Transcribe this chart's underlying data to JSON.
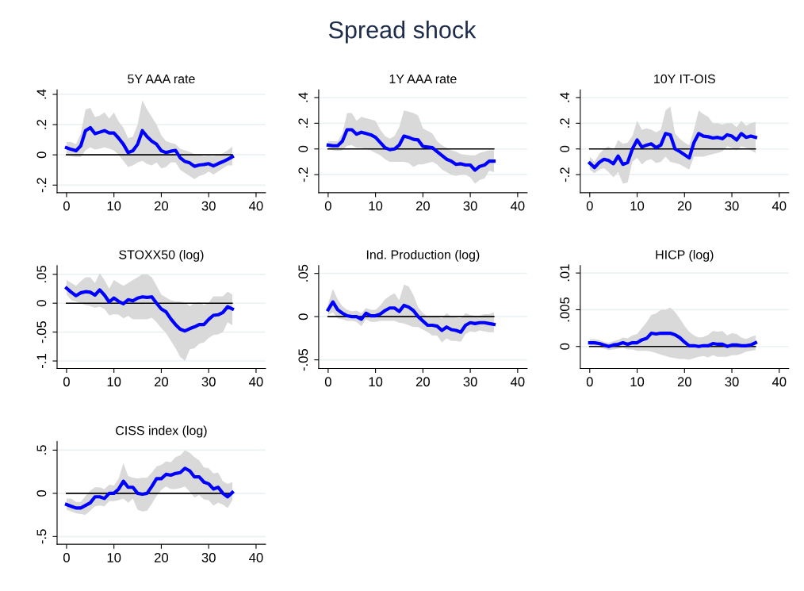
{
  "chart_data": [
    {
      "type": "line",
      "title": "5Y AAA rate",
      "annotations": [
        "Spread shock"
      ],
      "grid": "y",
      "xlim": [
        -2,
        42
      ],
      "xticks": [
        0,
        10,
        20,
        30,
        40
      ],
      "ylim": [
        -0.25,
        0.43
      ],
      "yticks": [
        {
          "value": -0.2,
          "label": "-.2"
        },
        0,
        {
          "value": 0.2,
          "label": ".2"
        },
        {
          "value": 0.4,
          "label": ".4"
        }
      ],
      "ref_lines": [
        {
          "axis": "y",
          "value": 0,
          "color": "#000000"
        }
      ],
      "x": [
        0,
        1,
        2,
        3,
        4,
        5,
        6,
        7,
        8,
        9,
        10,
        11,
        12,
        13,
        14,
        15,
        16,
        17,
        18,
        19,
        20,
        21,
        22,
        23,
        24,
        25,
        26,
        27,
        28,
        29,
        30,
        31,
        32,
        33,
        34,
        35
      ],
      "series": [
        {
          "color": "#0000ff",
          "values": [
            0.047,
            0.036,
            0.027,
            0.06,
            0.16,
            0.18,
            0.14,
            0.15,
            0.16,
            0.145,
            0.145,
            0.11,
            0.07,
            0.015,
            0.027,
            0.07,
            0.16,
            0.12,
            0.09,
            0.07,
            0.027,
            0.015,
            0.024,
            0.03,
            -0.02,
            -0.044,
            -0.053,
            -0.076,
            -0.067,
            -0.064,
            -0.058,
            -0.073,
            -0.058,
            -0.045,
            -0.03,
            -0.013
          ],
          "upper": [
            0.085,
            0.085,
            0.07,
            0.14,
            0.3,
            0.31,
            0.25,
            0.26,
            0.28,
            0.24,
            0.28,
            0.22,
            0.18,
            0.11,
            0.12,
            0.2,
            0.36,
            0.3,
            0.25,
            0.2,
            0.13,
            0.09,
            0.08,
            0.07,
            0.04,
            0.03,
            0.02,
            0.005,
            0.0,
            -0.01,
            -0.005,
            -0.01,
            0.0,
            0.01,
            0.03,
            0.055
          ],
          "lower": [
            0.0,
            -0.01,
            -0.015,
            -0.015,
            0.03,
            0.05,
            0.035,
            0.04,
            0.05,
            0.04,
            0.03,
            0.0,
            -0.04,
            -0.08,
            -0.07,
            -0.05,
            -0.04,
            -0.06,
            -0.07,
            -0.05,
            -0.09,
            -0.08,
            -0.05,
            -0.05,
            -0.1,
            -0.12,
            -0.14,
            -0.16,
            -0.14,
            -0.13,
            -0.11,
            -0.13,
            -0.11,
            -0.09,
            -0.07,
            -0.07
          ]
        }
      ]
    },
    {
      "type": "line",
      "title": "1Y AAA rate",
      "grid": "y",
      "xlim": [
        -2,
        42
      ],
      "xticks": [
        0,
        10,
        20,
        30,
        40
      ],
      "ylim": [
        -0.34,
        0.46
      ],
      "yticks": [
        {
          "value": -0.2,
          "label": "-.2"
        },
        0,
        {
          "value": 0.2,
          "label": ".2"
        },
        {
          "value": 0.4,
          "label": ".4"
        }
      ],
      "ref_lines": [
        {
          "axis": "y",
          "value": 0,
          "color": "#000000"
        }
      ],
      "x": [
        0,
        1,
        2,
        3,
        4,
        5,
        6,
        7,
        8,
        9,
        10,
        11,
        12,
        13,
        14,
        15,
        16,
        17,
        18,
        19,
        20,
        21,
        22,
        23,
        24,
        25,
        26,
        27,
        28,
        29,
        30,
        31,
        32,
        33,
        34,
        35
      ],
      "series": [
        {
          "color": "#0000ff",
          "values": [
            0.03,
            0.025,
            0.025,
            0.06,
            0.15,
            0.15,
            0.115,
            0.13,
            0.12,
            0.11,
            0.09,
            0.05,
            0.01,
            -0.005,
            0,
            0.03,
            0.1,
            0.09,
            0.075,
            0.07,
            0.02,
            0.015,
            0.01,
            -0.02,
            -0.05,
            -0.08,
            -0.095,
            -0.12,
            -0.115,
            -0.125,
            -0.125,
            -0.165,
            -0.135,
            -0.125,
            -0.095,
            -0.095
          ],
          "upper": [
            0.06,
            0.06,
            0.06,
            0.12,
            0.28,
            0.28,
            0.22,
            0.25,
            0.24,
            0.23,
            0.22,
            0.15,
            0.1,
            0.08,
            0.1,
            0.17,
            0.3,
            0.29,
            0.28,
            0.26,
            0.16,
            0.14,
            0.12,
            0.06,
            0.03,
            0.01,
            -0.01,
            -0.02,
            -0.04,
            -0.045,
            -0.05,
            -0.05,
            -0.03,
            -0.02,
            -0.01,
            -0.01
          ],
          "lower": [
            0.0,
            -0.01,
            -0.015,
            -0.01,
            0.025,
            0.03,
            0.01,
            0.01,
            0.0,
            -0.01,
            -0.03,
            -0.05,
            -0.08,
            -0.1,
            -0.1,
            -0.1,
            -0.1,
            -0.11,
            -0.14,
            -0.12,
            -0.12,
            -0.11,
            -0.1,
            -0.12,
            -0.16,
            -0.18,
            -0.2,
            -0.21,
            -0.2,
            -0.2,
            -0.22,
            -0.27,
            -0.24,
            -0.23,
            -0.17,
            -0.18
          ]
        }
      ]
    },
    {
      "type": "line",
      "title": "10Y IT-OIS",
      "grid": "y",
      "xlim": [
        -2,
        42
      ],
      "xticks": [
        0,
        10,
        20,
        30,
        40
      ],
      "ylim": [
        -0.34,
        0.46
      ],
      "yticks": [
        {
          "value": -0.2,
          "label": "-.2"
        },
        0,
        {
          "value": 0.2,
          "label": ".2"
        },
        {
          "value": 0.4,
          "label": ".4"
        }
      ],
      "ref_lines": [
        {
          "axis": "y",
          "value": 0,
          "color": "#000000"
        }
      ],
      "x": [
        0,
        1,
        2,
        3,
        4,
        5,
        6,
        7,
        8,
        9,
        10,
        11,
        12,
        13,
        14,
        15,
        16,
        17,
        18,
        19,
        20,
        21,
        22,
        23,
        24,
        25,
        26,
        27,
        28,
        29,
        30,
        31,
        32,
        33,
        34,
        35
      ],
      "series": [
        {
          "color": "#0000ff",
          "values": [
            -0.11,
            -0.145,
            -0.105,
            -0.08,
            -0.09,
            -0.115,
            -0.055,
            -0.12,
            -0.105,
            0.0,
            0.07,
            0.015,
            0.03,
            0.04,
            0.01,
            0.03,
            0.12,
            0.11,
            0.0,
            -0.02,
            -0.045,
            -0.07,
            0.05,
            0.12,
            0.1,
            0.095,
            0.085,
            0.09,
            0.08,
            0.11,
            0.1,
            0.07,
            0.12,
            0.09,
            0.1,
            0.09
          ],
          "upper": [
            -0.06,
            -0.1,
            -0.04,
            0,
            0.02,
            -0.01,
            0.07,
            0.04,
            0.05,
            0.1,
            0.22,
            0.15,
            0.16,
            0.15,
            0.13,
            0.15,
            0.3,
            0.33,
            0.12,
            0.08,
            0.05,
            0.03,
            0.15,
            0.3,
            0.27,
            0.25,
            0.2,
            0.2,
            0.19,
            0.2,
            0.2,
            0.17,
            0.22,
            0.18,
            0.2,
            0.21
          ],
          "lower": [
            -0.16,
            -0.19,
            -0.16,
            -0.15,
            -0.18,
            -0.22,
            -0.18,
            -0.27,
            -0.26,
            -0.1,
            -0.07,
            -0.12,
            -0.09,
            -0.08,
            -0.11,
            -0.1,
            -0.06,
            -0.1,
            -0.11,
            -0.12,
            -0.14,
            -0.16,
            -0.06,
            -0.06,
            -0.06,
            -0.05,
            -0.04,
            -0.03,
            -0.02,
            0.02,
            0.01,
            -0.01,
            0.02,
            0.01,
            -0.01,
            -0.03
          ]
        }
      ]
    },
    {
      "type": "line",
      "title": "STOXX50 (log)",
      "grid": "y",
      "xlim": [
        -2,
        42
      ],
      "xticks": [
        0,
        10,
        20,
        30,
        40
      ],
      "ylim": [
        -0.113,
        0.065
      ],
      "yticks": [
        {
          "value": -0.1,
          "label": "-.1"
        },
        {
          "value": -0.05,
          "label": "-.05"
        },
        0,
        {
          "value": 0.05,
          "label": ".05"
        }
      ],
      "ref_lines": [
        {
          "axis": "y",
          "value": 0,
          "color": "#000000"
        }
      ],
      "x": [
        0,
        1,
        2,
        3,
        4,
        5,
        6,
        7,
        8,
        9,
        10,
        11,
        12,
        13,
        14,
        15,
        16,
        17,
        18,
        19,
        20,
        21,
        22,
        23,
        24,
        25,
        26,
        27,
        28,
        29,
        30,
        31,
        32,
        33,
        34,
        35
      ],
      "series": [
        {
          "color": "#0000ff",
          "values": [
            0.026,
            0.019,
            0.013,
            0.018,
            0.02,
            0.019,
            0.014,
            0.023,
            0.014,
            0.002,
            0.009,
            0.003,
            -0.001,
            0.006,
            0.004,
            0.009,
            0.011,
            0.01,
            0.011,
            0.0,
            -0.01,
            -0.015,
            -0.027,
            -0.037,
            -0.045,
            -0.048,
            -0.044,
            -0.041,
            -0.037,
            -0.037,
            -0.028,
            -0.021,
            -0.02,
            -0.016,
            -0.006,
            -0.01
          ],
          "upper": [
            0.04,
            0.035,
            0.03,
            0.038,
            0.045,
            0.045,
            0.035,
            0.052,
            0.04,
            0.025,
            0.04,
            0.035,
            0.03,
            0.035,
            0.04,
            0.045,
            0.05,
            0.05,
            0.045,
            0.03,
            0.015,
            0.01,
            0.005,
            0.003,
            0.003,
            0.001,
            -0.005,
            0.0,
            0.002,
            -0.003,
            0.001,
            0.012,
            0.012,
            0.012,
            0.02,
            0.015
          ],
          "lower": [
            0.015,
            0.005,
            0.003,
            0.0,
            -0.003,
            -0.005,
            -0.008,
            -0.006,
            -0.01,
            -0.021,
            -0.019,
            -0.02,
            -0.026,
            -0.022,
            -0.028,
            -0.028,
            -0.028,
            -0.028,
            -0.025,
            -0.033,
            -0.043,
            -0.052,
            -0.065,
            -0.078,
            -0.093,
            -0.1,
            -0.08,
            -0.078,
            -0.07,
            -0.068,
            -0.06,
            -0.055,
            -0.054,
            -0.05,
            -0.033,
            -0.038
          ]
        }
      ]
    },
    {
      "type": "line",
      "title": "Ind. Production (log)",
      "grid": "y",
      "xlim": [
        -2,
        42
      ],
      "xticks": [
        0,
        10,
        20,
        30,
        40
      ],
      "ylim": [
        -0.06,
        0.059
      ],
      "yticks": [
        {
          "value": -0.05,
          "label": "-.05"
        },
        0,
        {
          "value": 0.05,
          "label": ".05"
        }
      ],
      "ref_lines": [
        {
          "axis": "y",
          "value": 0,
          "color": "#000000"
        }
      ],
      "x": [
        0,
        1,
        2,
        3,
        4,
        5,
        6,
        7,
        8,
        9,
        10,
        11,
        12,
        13,
        14,
        15,
        16,
        17,
        18,
        19,
        20,
        21,
        22,
        23,
        24,
        25,
        26,
        27,
        28,
        29,
        30,
        31,
        32,
        33,
        34,
        35
      ],
      "series": [
        {
          "color": "#0000ff",
          "values": [
            0.008,
            0.017,
            0.008,
            0.004,
            0.001,
            0.0,
            0.0,
            -0.003,
            0.004,
            0.001,
            0.001,
            0.003,
            0.007,
            0.01,
            0.01,
            0.006,
            0.013,
            0.011,
            0.007,
            0.0,
            -0.005,
            -0.01,
            -0.01,
            -0.011,
            -0.016,
            -0.012,
            -0.015,
            -0.016,
            -0.018,
            -0.01,
            -0.007,
            -0.008,
            -0.007,
            -0.007,
            -0.008,
            -0.009
          ],
          "upper": [
            0.015,
            0.032,
            0.02,
            0.012,
            0.008,
            0.006,
            0.007,
            0.004,
            0.01,
            0.008,
            0.008,
            0.013,
            0.02,
            0.024,
            0.027,
            0.019,
            0.037,
            0.035,
            0.025,
            0.011,
            0.004,
            0.0,
            0.0,
            0.0,
            -0.002,
            0.004,
            0.0,
            -0.001,
            -0.002,
            0.004,
            0.002,
            0.001,
            0.001,
            0.003,
            0.003,
            0.005
          ],
          "lower": [
            0.002,
            0.005,
            -0.002,
            -0.003,
            -0.005,
            -0.005,
            -0.006,
            -0.011,
            -0.003,
            -0.006,
            -0.006,
            -0.005,
            -0.005,
            -0.005,
            -0.005,
            -0.007,
            -0.008,
            -0.01,
            -0.012,
            -0.012,
            -0.015,
            -0.018,
            -0.022,
            -0.022,
            -0.03,
            -0.025,
            -0.028,
            -0.028,
            -0.029,
            -0.02,
            -0.017,
            -0.018,
            -0.016,
            -0.017,
            -0.018,
            -0.018
          ]
        }
      ]
    },
    {
      "type": "line",
      "title": "HICP (log)",
      "grid": "y",
      "xlim": [
        -2,
        42
      ],
      "xticks": [
        0,
        10,
        20,
        30,
        40
      ],
      "ylim": [
        -0.003,
        0.011
      ],
      "yticks": [
        0,
        {
          "value": 0.005,
          "label": ".005"
        },
        {
          "value": 0.01,
          "label": ".01"
        }
      ],
      "ref_lines": [
        {
          "axis": "y",
          "value": 0,
          "color": "#000000"
        }
      ],
      "x": [
        0,
        1,
        2,
        3,
        4,
        5,
        6,
        7,
        8,
        9,
        10,
        11,
        12,
        13,
        14,
        15,
        16,
        17,
        18,
        19,
        20,
        21,
        22,
        23,
        24,
        25,
        26,
        27,
        28,
        29,
        30,
        31,
        32,
        33,
        34,
        35
      ],
      "series": [
        {
          "color": "#0000ff",
          "values": [
            0.0005,
            0.0005,
            0.0004,
            0.0002,
            0.0,
            0.0002,
            0.0003,
            0.0005,
            0.0003,
            0.0005,
            0.0005,
            0.0009,
            0.0011,
            0.0018,
            0.0017,
            0.0018,
            0.0018,
            0.0018,
            0.0016,
            0.0012,
            0.0006,
            0.0001,
            0.0001,
            0.0,
            0.0001,
            0.0001,
            0.0004,
            0.0003,
            0.0003,
            0.0,
            0.0002,
            0.0002,
            0.0001,
            0.0001,
            0.0002,
            0.0005
          ],
          "upper": [
            0.001,
            0.001,
            0.0009,
            0.0006,
            0.0005,
            0.0007,
            0.0009,
            0.0012,
            0.0011,
            0.0015,
            0.0017,
            0.0025,
            0.0033,
            0.0043,
            0.0045,
            0.005,
            0.005,
            0.0053,
            0.0047,
            0.0038,
            0.0028,
            0.002,
            0.0015,
            0.0012,
            0.0013,
            0.0016,
            0.0021,
            0.002,
            0.0021,
            0.0015,
            0.0018,
            0.0017,
            0.0012,
            0.001,
            0.0013,
            0.0015
          ],
          "lower": [
            0.0001,
            0.0001,
            -0.0001,
            -0.0003,
            -0.0005,
            -0.0004,
            -0.0003,
            -0.0002,
            -0.0004,
            -0.0004,
            -0.0006,
            -0.0006,
            -0.0006,
            -0.0007,
            -0.0009,
            -0.0011,
            -0.0013,
            -0.0015,
            -0.0016,
            -0.0017,
            -0.0017,
            -0.0018,
            -0.0016,
            -0.0014,
            -0.0013,
            -0.0015,
            -0.0012,
            -0.0014,
            -0.0014,
            -0.0014,
            -0.0012,
            -0.0012,
            -0.001,
            -0.0007,
            -0.0006,
            -0.0005
          ]
        }
      ]
    },
    {
      "type": "line",
      "title": "CISS index (log)",
      "grid": "y",
      "xlim": [
        -2,
        42
      ],
      "xticks": [
        0,
        10,
        20,
        30,
        40
      ],
      "ylim": [
        -0.59,
        0.6
      ],
      "yticks": [
        {
          "value": -0.5,
          "label": "-.5"
        },
        0,
        {
          "value": 0.5,
          "label": ".5"
        }
      ],
      "ref_lines": [
        {
          "axis": "y",
          "value": 0,
          "color": "#000000"
        }
      ],
      "x": [
        0,
        1,
        2,
        3,
        4,
        5,
        6,
        7,
        8,
        9,
        10,
        11,
        12,
        13,
        14,
        15,
        16,
        17,
        18,
        19,
        20,
        21,
        22,
        23,
        24,
        25,
        26,
        27,
        28,
        29,
        30,
        31,
        32,
        33,
        34,
        35
      ],
      "series": [
        {
          "color": "#0000ff",
          "values": [
            -0.13,
            -0.15,
            -0.17,
            -0.17,
            -0.14,
            -0.11,
            -0.04,
            -0.04,
            -0.06,
            0.0,
            0.0,
            0.05,
            0.14,
            0.07,
            0.07,
            0.0,
            -0.01,
            0.0,
            0.08,
            0.17,
            0.17,
            0.22,
            0.21,
            0.23,
            0.24,
            0.29,
            0.26,
            0.19,
            0.19,
            0.13,
            0.11,
            0.05,
            0.07,
            0.0,
            -0.04,
            0.01
          ],
          "upper": [
            -0.06,
            -0.06,
            -0.1,
            -0.1,
            -0.03,
            0.03,
            0.07,
            0.07,
            0.05,
            0.1,
            0.09,
            0.17,
            0.35,
            0.2,
            0.18,
            0.17,
            0.18,
            0.18,
            0.24,
            0.31,
            0.33,
            0.37,
            0.36,
            0.42,
            0.44,
            0.5,
            0.47,
            0.42,
            0.38,
            0.3,
            0.29,
            0.23,
            0.24,
            0.14,
            0.11,
            0.13
          ],
          "lower": [
            -0.19,
            -0.21,
            -0.23,
            -0.24,
            -0.25,
            -0.2,
            -0.15,
            -0.14,
            -0.15,
            -0.09,
            -0.09,
            -0.08,
            -0.06,
            -0.11,
            -0.06,
            -0.19,
            -0.21,
            -0.2,
            -0.12,
            -0.03,
            0.04,
            0.08,
            0.05,
            0.05,
            0.06,
            0.08,
            0.02,
            -0.05,
            -0.02,
            -0.07,
            -0.08,
            -0.14,
            -0.11,
            -0.13,
            -0.17,
            -0.08
          ]
        }
      ]
    }
  ]
}
